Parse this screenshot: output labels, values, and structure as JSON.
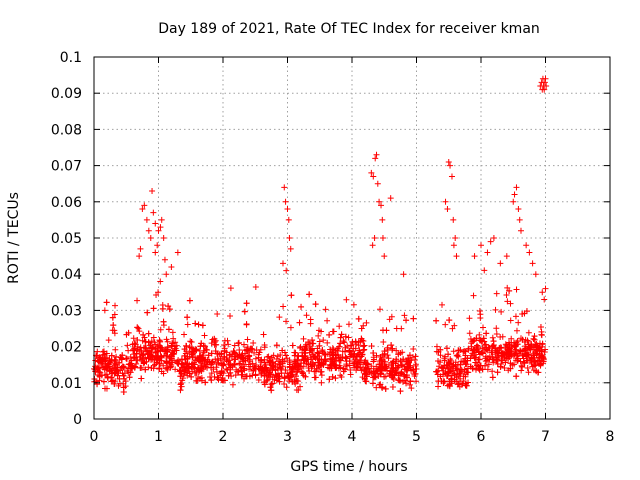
{
  "chart_data": {
    "type": "scatter",
    "title": "Day 189 of 2021, Rate Of TEC Index for receiver kman",
    "xlabel": "GPS time / hours",
    "ylabel": "ROTI / TECUs",
    "xlim": [
      0,
      8
    ],
    "ylim": [
      0,
      0.1
    ],
    "xticks": [
      0,
      1,
      2,
      3,
      4,
      5,
      6,
      7,
      8
    ],
    "xtick_labels": [
      "0",
      "1",
      "2",
      "3",
      "4",
      "5",
      "6",
      "7",
      "8"
    ],
    "yticks": [
      0,
      0.01,
      0.02,
      0.03,
      0.04,
      0.05,
      0.06,
      0.07,
      0.08,
      0.09,
      0.1
    ],
    "ytick_labels": [
      "0",
      "0.01",
      "0.02",
      "0.03",
      "0.04",
      "0.05",
      "0.06",
      "0.07",
      "0.08",
      "0.09",
      "0.1"
    ],
    "grid": true,
    "marker": "plus",
    "color": "#ff0000",
    "x_range_of_data": [
      0.0,
      7.0
    ],
    "data_gap": [
      5.0,
      5.3
    ],
    "points": [
      [
        0.75,
        0.058
      ],
      [
        0.78,
        0.059
      ],
      [
        0.82,
        0.055
      ],
      [
        0.85,
        0.052
      ],
      [
        0.88,
        0.05
      ],
      [
        0.9,
        0.063
      ],
      [
        0.92,
        0.057
      ],
      [
        0.95,
        0.054
      ],
      [
        0.98,
        0.048
      ],
      [
        1.0,
        0.052
      ],
      [
        1.03,
        0.053
      ],
      [
        1.05,
        0.055
      ],
      [
        1.08,
        0.05
      ],
      [
        1.1,
        0.044
      ],
      [
        1.12,
        0.04
      ],
      [
        0.7,
        0.045
      ],
      [
        0.72,
        0.047
      ],
      [
        0.95,
        0.046
      ],
      [
        1.2,
        0.042
      ],
      [
        1.3,
        0.046
      ],
      [
        2.95,
        0.064
      ],
      [
        2.97,
        0.06
      ],
      [
        3.0,
        0.058
      ],
      [
        3.02,
        0.055
      ],
      [
        3.03,
        0.05
      ],
      [
        3.05,
        0.047
      ],
      [
        2.93,
        0.043
      ],
      [
        2.98,
        0.041
      ],
      [
        4.3,
        0.068
      ],
      [
        4.33,
        0.067
      ],
      [
        4.36,
        0.072
      ],
      [
        4.38,
        0.073
      ],
      [
        4.4,
        0.065
      ],
      [
        4.42,
        0.06
      ],
      [
        4.45,
        0.059
      ],
      [
        4.47,
        0.055
      ],
      [
        4.48,
        0.05
      ],
      [
        4.5,
        0.045
      ],
      [
        4.35,
        0.05
      ],
      [
        4.32,
        0.048
      ],
      [
        4.6,
        0.061
      ],
      [
        4.8,
        0.04
      ],
      [
        5.45,
        0.06
      ],
      [
        5.48,
        0.058
      ],
      [
        5.5,
        0.071
      ],
      [
        5.52,
        0.07
      ],
      [
        5.55,
        0.067
      ],
      [
        5.57,
        0.055
      ],
      [
        5.6,
        0.05
      ],
      [
        5.62,
        0.045
      ],
      [
        5.58,
        0.048
      ],
      [
        5.9,
        0.045
      ],
      [
        6.0,
        0.048
      ],
      [
        6.1,
        0.046
      ],
      [
        6.15,
        0.049
      ],
      [
        6.2,
        0.05
      ],
      [
        6.3,
        0.043
      ],
      [
        6.4,
        0.045
      ],
      [
        6.5,
        0.06
      ],
      [
        6.52,
        0.062
      ],
      [
        6.55,
        0.064
      ],
      [
        6.58,
        0.058
      ],
      [
        6.6,
        0.055
      ],
      [
        6.62,
        0.052
      ],
      [
        6.7,
        0.048
      ],
      [
        6.75,
        0.046
      ],
      [
        6.8,
        0.043
      ],
      [
        6.85,
        0.04
      ],
      [
        6.95,
        0.035
      ],
      [
        7.0,
        0.036
      ],
      [
        6.98,
        0.033
      ],
      [
        6.92,
        0.092
      ],
      [
        6.94,
        0.093
      ],
      [
        6.96,
        0.094
      ],
      [
        6.97,
        0.092
      ],
      [
        6.99,
        0.093
      ],
      [
        7.0,
        0.094
      ],
      [
        6.95,
        0.091
      ],
      [
        6.98,
        0.091
      ],
      [
        7.01,
        0.092
      ]
    ]
  }
}
